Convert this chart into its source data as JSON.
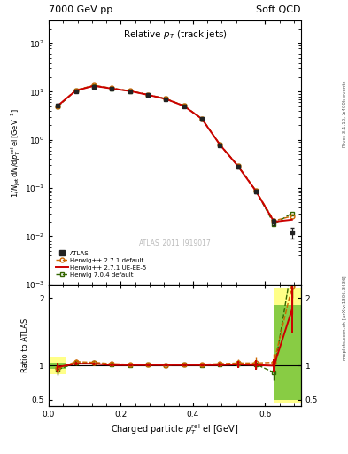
{
  "title_left": "7000 GeV pp",
  "title_right": "Soft QCD",
  "main_title": "Relative $p_T$ (track jets)",
  "xlabel": "Charged particle $p_T^{\\rm rel}$ el [GeV]",
  "ylabel_main": "$1/N_{\\rm jet}\\,{\\rm d}N/{\\rm d}p_T^{\\rm rel}\\,{\\rm el}\\,[{\\rm GeV}^{-1}]$",
  "ylabel_ratio": "Ratio to ATLAS",
  "right_label_top": "Rivet 3.1.10, ≥400k events",
  "right_label_bot": "mcplots.cern.ch [arXiv:1306.3436]",
  "watermark": "ATLAS_2011_I919017",
  "x_data": [
    0.025,
    0.075,
    0.125,
    0.175,
    0.225,
    0.275,
    0.325,
    0.375,
    0.425,
    0.475,
    0.525,
    0.575,
    0.625,
    0.675
  ],
  "atlas_y": [
    5.2,
    10.2,
    12.8,
    11.5,
    10.2,
    8.5,
    7.0,
    5.0,
    2.7,
    0.78,
    0.28,
    0.085,
    0.02,
    0.012
  ],
  "atlas_yerr": [
    0.3,
    0.4,
    0.5,
    0.4,
    0.4,
    0.3,
    0.3,
    0.2,
    0.15,
    0.05,
    0.02,
    0.008,
    0.003,
    0.003
  ],
  "h271d_y": [
    5.0,
    10.8,
    13.5,
    11.8,
    10.4,
    8.7,
    7.1,
    5.1,
    2.75,
    0.8,
    0.29,
    0.088,
    0.021,
    0.026
  ],
  "h271e_y": [
    5.1,
    10.5,
    13.2,
    11.6,
    10.3,
    8.6,
    7.05,
    5.05,
    2.72,
    0.79,
    0.285,
    0.086,
    0.02,
    0.022
  ],
  "h704d_y": [
    4.9,
    10.6,
    13.3,
    11.7,
    10.3,
    8.65,
    7.08,
    5.08,
    2.73,
    0.795,
    0.288,
    0.087,
    0.018,
    0.03
  ],
  "r271d": [
    0.96,
    1.06,
    1.05,
    1.03,
    1.02,
    1.02,
    1.01,
    1.02,
    1.02,
    1.03,
    1.04,
    1.04,
    1.05,
    2.17
  ],
  "r271e": [
    0.98,
    1.03,
    1.03,
    1.01,
    1.01,
    1.01,
    1.01,
    1.01,
    1.01,
    1.01,
    1.02,
    1.01,
    1.0,
    1.83
  ],
  "r704d": [
    0.94,
    1.04,
    1.04,
    1.02,
    1.01,
    1.02,
    1.01,
    1.02,
    1.01,
    1.02,
    1.03,
    1.02,
    0.9,
    2.5
  ],
  "r271d_err": [
    0.08,
    0.04,
    0.03,
    0.03,
    0.02,
    0.02,
    0.02,
    0.02,
    0.03,
    0.04,
    0.06,
    0.08,
    0.12,
    0.4
  ],
  "r271e_err": [
    0.06,
    0.03,
    0.02,
    0.02,
    0.02,
    0.02,
    0.02,
    0.02,
    0.02,
    0.03,
    0.05,
    0.07,
    0.1,
    0.35
  ],
  "r704d_err": [
    0.08,
    0.04,
    0.03,
    0.03,
    0.02,
    0.02,
    0.02,
    0.02,
    0.02,
    0.03,
    0.05,
    0.07,
    0.12,
    0.5
  ],
  "c_atlas": "#222222",
  "c_h271d": "#cc6600",
  "c_h271e": "#cc0000",
  "c_h704d": "#336600",
  "xlim": [
    0.0,
    0.7
  ],
  "ylim_main": [
    0.001,
    300
  ],
  "ylim_ratio": [
    0.4,
    2.2
  ],
  "ratio_yticks": [
    0.5,
    1.0,
    2.0
  ],
  "ratio_yticklabels": [
    "0.5",
    "1",
    "2"
  ]
}
